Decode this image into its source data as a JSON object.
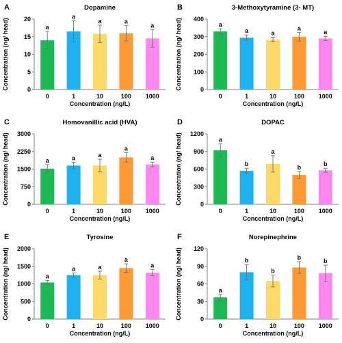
{
  "colors": {
    "bar_colors": [
      "#1db954",
      "#1fb1f0",
      "#ffd966",
      "#ff9933",
      "#ff88ee"
    ],
    "axis": "#7f7f7f",
    "error_bar": "#6f6f6f"
  },
  "chart_data": [
    {
      "type": "bar",
      "letter": "A",
      "title": "Dopamine",
      "xlabel": "Concentration (ng/L)",
      "ylabel": "Concentration (ng/ head)",
      "categories": [
        "0",
        "1",
        "10",
        "100",
        "1000"
      ],
      "values": [
        14,
        16.5,
        15.8,
        16,
        14.5
      ],
      "errors": [
        2.5,
        3.0,
        2.5,
        2.2,
        2.5
      ],
      "significance": [
        "a",
        "a",
        "a",
        "a",
        "a"
      ],
      "ylim": [
        0,
        20
      ],
      "yticks": [
        "0",
        "5",
        "10",
        "15",
        "20"
      ]
    },
    {
      "type": "bar",
      "letter": "B",
      "title": "3-Methoxytyramine (3- MT)",
      "xlabel": "Concentration (ng/L)",
      "ylabel": "Concentration (ng/ head)",
      "categories": [
        "0",
        "1",
        "10",
        "100",
        "1000"
      ],
      "values": [
        330,
        295,
        285,
        300,
        290
      ],
      "errors": [
        15,
        15,
        12,
        25,
        12
      ],
      "significance": [
        "a",
        "a",
        "a",
        "a",
        "a"
      ],
      "ylim": [
        0,
        400
      ],
      "yticks": [
        "0",
        "100",
        "200",
        "300",
        "400"
      ]
    },
    {
      "type": "bar",
      "letter": "C",
      "title": "Homovanillic acid (HVA)",
      "xlabel": "Concentration (ng/L)",
      "ylabel": "Concentration (ng/ head)",
      "categories": [
        "0",
        "1",
        "10",
        "100",
        "1000"
      ],
      "values": [
        1520,
        1650,
        1650,
        2000,
        1700
      ],
      "errors": [
        170,
        140,
        270,
        200,
        100
      ],
      "significance": [
        "a",
        "a",
        "a",
        "a",
        "a"
      ],
      "ylim": [
        0,
        3000
      ],
      "yticks": [
        "0",
        "750",
        "1500",
        "2250",
        "3000"
      ]
    },
    {
      "type": "bar",
      "letter": "D",
      "title": "DOPAC",
      "xlabel": "Concentration (ng/L)",
      "ylabel": "Concentration (ng/ head)",
      "categories": [
        "0",
        "1",
        "10",
        "100",
        "1000"
      ],
      "values": [
        920,
        570,
        690,
        500,
        580
      ],
      "errors": [
        110,
        45,
        140,
        60,
        35
      ],
      "significance": [
        "a",
        "b",
        "a",
        "b",
        "b"
      ],
      "ylim": [
        0,
        1200
      ],
      "yticks": [
        "0",
        "300",
        "600",
        "900",
        "1200"
      ]
    },
    {
      "type": "bar",
      "letter": "E",
      "title": "Tyrosine",
      "xlabel": "Concentration (ng/L)",
      "ylabel": "Concentration (ng/ head)",
      "categories": [
        "0",
        "1",
        "10",
        "100",
        "1000"
      ],
      "values": [
        1040,
        1250,
        1250,
        1450,
        1320
      ],
      "errors": [
        60,
        60,
        110,
        120,
        90
      ],
      "significance": [
        "a",
        "a",
        "a",
        "a",
        "a"
      ],
      "ylim": [
        0,
        2000
      ],
      "yticks": [
        "0",
        "500",
        "1000",
        "1500",
        "2000"
      ]
    },
    {
      "type": "bar",
      "letter": "F",
      "title": "Norepinephrine",
      "xlabel": "Concentration (ng/L)",
      "ylabel": "Concentration (ng/ head)",
      "categories": [
        "0",
        "1",
        "10",
        "100",
        "1000"
      ],
      "values": [
        37,
        80,
        65,
        88,
        78
      ],
      "errors": [
        5,
        13,
        10,
        10,
        14
      ],
      "significance": [
        "a",
        "b",
        "b",
        "b",
        "b"
      ],
      "ylim": [
        0,
        120
      ],
      "yticks": [
        "0",
        "30",
        "60",
        "90",
        "120"
      ]
    }
  ]
}
